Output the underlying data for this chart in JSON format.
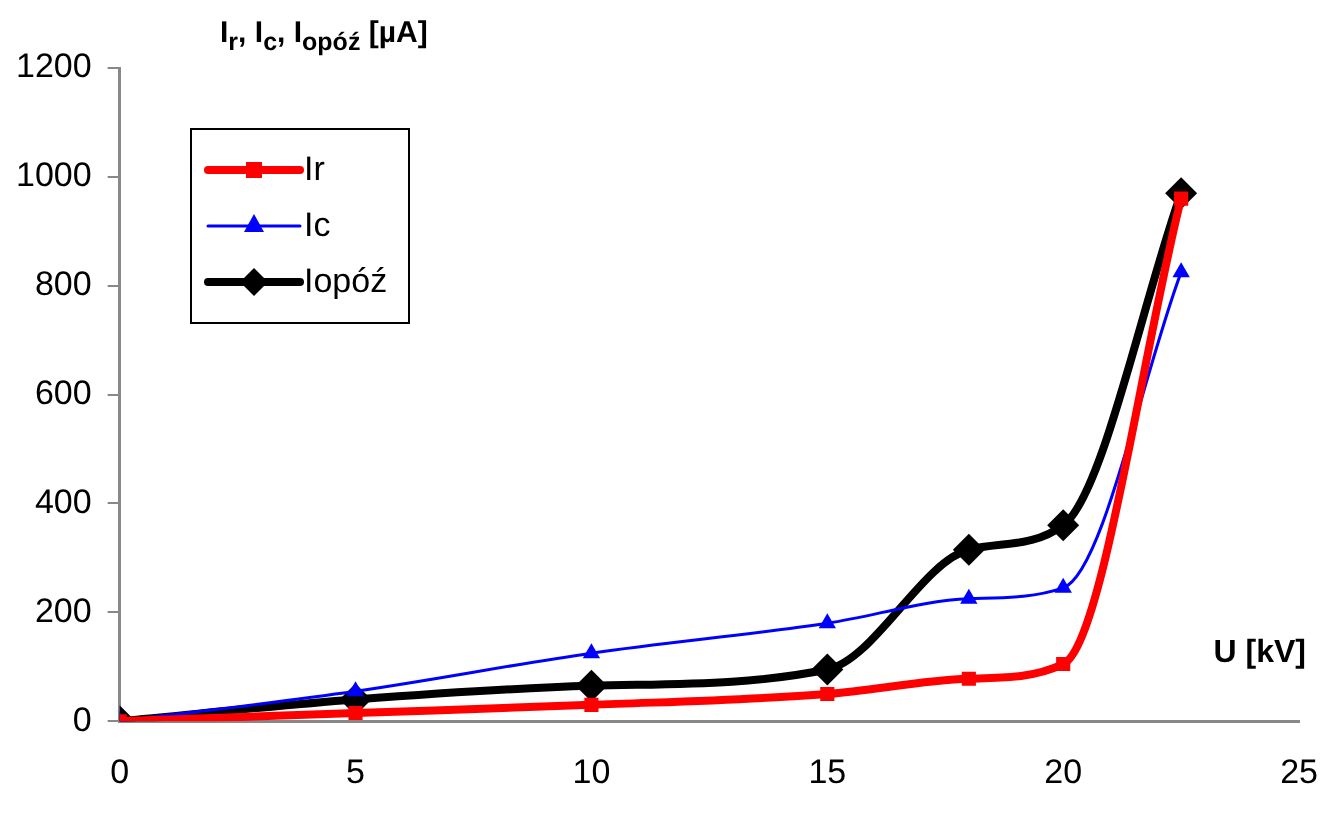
{
  "chart_data": {
    "type": "line",
    "ylabel": "I$_{r}$, I$_{c}$, I$_{opóź}$ [µA]",
    "xlabel": "U [kV]",
    "x": [
      0,
      5,
      10,
      15,
      18,
      20,
      22.5
    ],
    "series": [
      {
        "name": "Ir",
        "color": "#ff0000",
        "marker": "square",
        "values": [
          0,
          15,
          30,
          50,
          78,
          105,
          960
        ]
      },
      {
        "name": "Ic",
        "color": "#0000ff",
        "marker": "triangle",
        "values": [
          0,
          55,
          125,
          180,
          225,
          245,
          825
        ]
      },
      {
        "name": "Iopóź",
        "color": "#000000",
        "marker": "diamond",
        "values": [
          0,
          40,
          65,
          95,
          315,
          360,
          970
        ]
      }
    ],
    "xlim": [
      0,
      25
    ],
    "xticks": [
      0,
      5,
      10,
      15,
      20,
      25
    ],
    "ylim": [
      0,
      1200
    ],
    "yticks": [
      0,
      200,
      400,
      600,
      800,
      1000,
      1200
    ],
    "grid": false,
    "legend": "top left"
  }
}
